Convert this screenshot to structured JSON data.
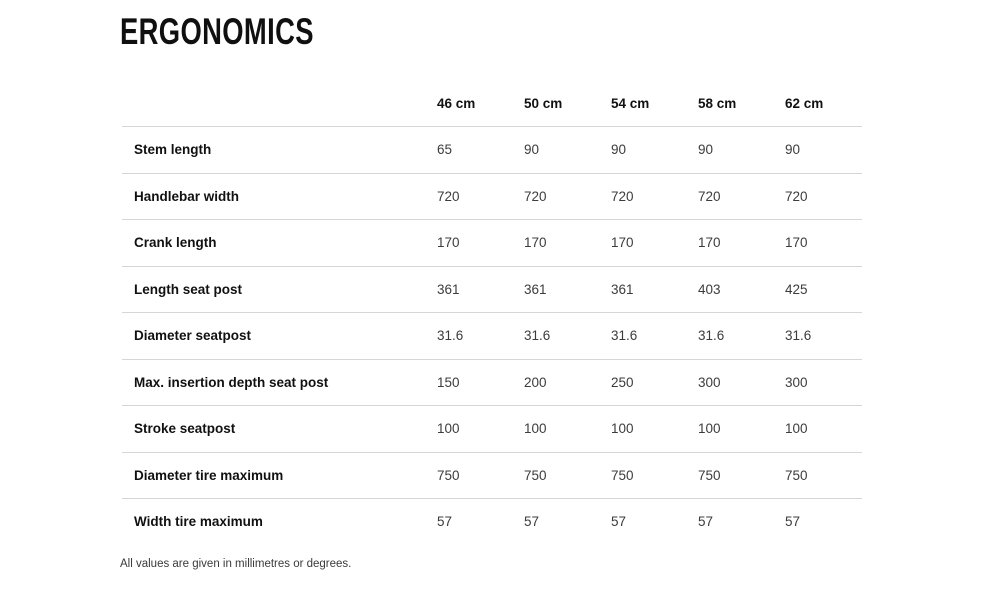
{
  "page": {
    "title": "ERGONOMICS",
    "footnote": "All values are given in millimetres or degrees."
  },
  "colors": {
    "title_text": "#101010",
    "label_text": "#111111",
    "value_text": "#3c3c3c",
    "divider": "#d6d6d6",
    "background": "#ffffff"
  },
  "chart_data": {
    "type": "table",
    "title": "ERGONOMICS",
    "columns": [
      "46 cm",
      "50 cm",
      "54 cm",
      "58 cm",
      "62 cm"
    ],
    "rows": [
      {
        "label": "Stem length",
        "values": [
          "65",
          "90",
          "90",
          "90",
          "90"
        ]
      },
      {
        "label": "Handlebar width",
        "values": [
          "720",
          "720",
          "720",
          "720",
          "720"
        ]
      },
      {
        "label": "Crank length",
        "values": [
          "170",
          "170",
          "170",
          "170",
          "170"
        ]
      },
      {
        "label": "Length seat post",
        "values": [
          "361",
          "361",
          "361",
          "403",
          "425"
        ]
      },
      {
        "label": "Diameter seatpost",
        "values": [
          "31.6",
          "31.6",
          "31.6",
          "31.6",
          "31.6"
        ]
      },
      {
        "label": "Max. insertion depth seat post",
        "values": [
          "150",
          "200",
          "250",
          "300",
          "300"
        ]
      },
      {
        "label": "Stroke seatpost",
        "values": [
          "100",
          "100",
          "100",
          "100",
          "100"
        ]
      },
      {
        "label": "Diameter tire maximum",
        "values": [
          "750",
          "750",
          "750",
          "750",
          "750"
        ]
      },
      {
        "label": "Width tire maximum",
        "values": [
          "57",
          "57",
          "57",
          "57",
          "57"
        ]
      }
    ],
    "footnote": "All values are given in millimetres or degrees.",
    "layout": {
      "grid": "horizontal-dividers-only",
      "header_position": "top",
      "legend": "none"
    }
  }
}
